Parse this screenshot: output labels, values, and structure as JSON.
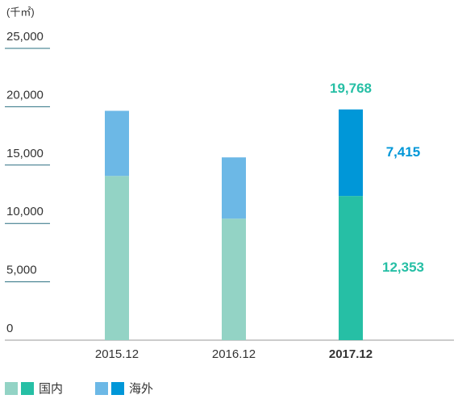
{
  "chart_data": {
    "type": "stacked_bar",
    "y_unit": "(千㎡)",
    "categories": [
      "2015.12",
      "2016.12",
      "2017.12"
    ],
    "highlight_category": 2,
    "series": [
      {
        "name": "国内",
        "color": "#93d3c5",
        "highlight_color": "#26bfa5",
        "values": [
          14070,
          10410,
          12353
        ],
        "value_labels": [
          null,
          null,
          "12,353"
        ]
      },
      {
        "name": "海外",
        "color": "#6cb8e6",
        "highlight_color": "#0097d8",
        "values": [
          5580,
          5250,
          7415
        ],
        "value_labels": [
          null,
          null,
          "7,415"
        ]
      }
    ],
    "totals": [
      null,
      null,
      19768
    ],
    "total_labels": [
      null,
      null,
      "19,768"
    ],
    "ylim": [
      0,
      25000
    ],
    "yticks": [
      0,
      {
        "value": 5000,
        "label": "5,000"
      },
      {
        "value": 10000,
        "label": "10,000"
      },
      {
        "value": 15000,
        "label": "15,000"
      },
      {
        "value": 20000,
        "label": "20,000"
      },
      {
        "value": 25000,
        "label": "25,000"
      }
    ]
  }
}
